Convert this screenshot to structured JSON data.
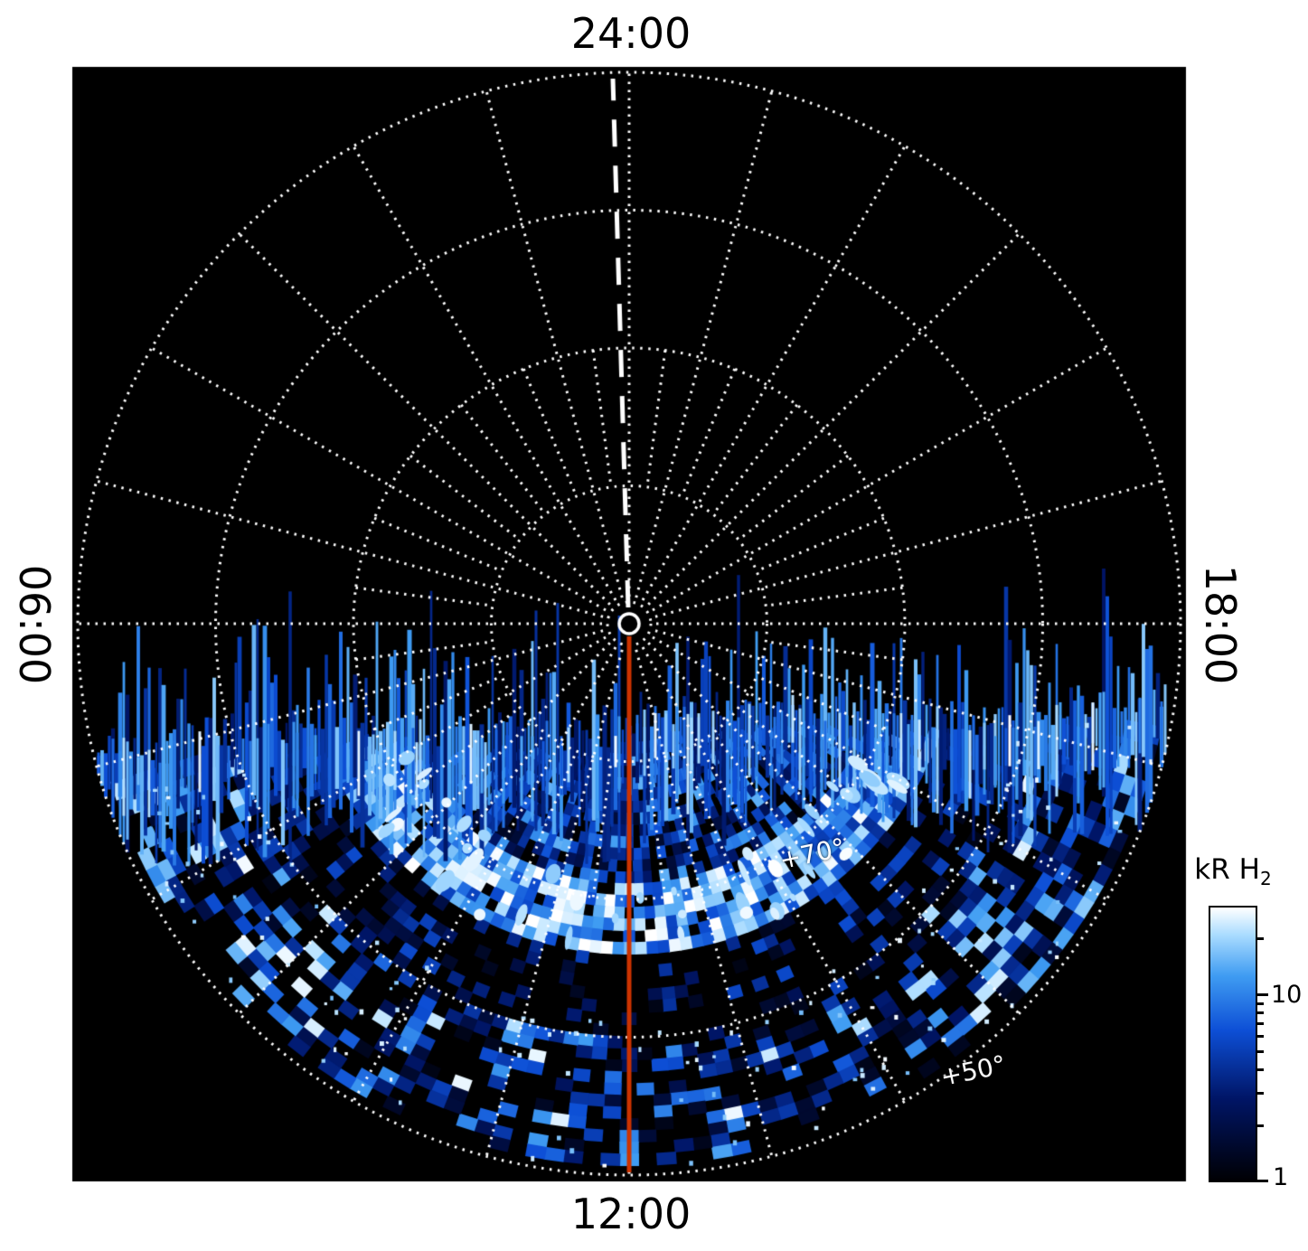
{
  "figure": {
    "background": "#ffffff",
    "plot_background": "#000000"
  },
  "chart_data": {
    "type": "heatmap",
    "projection": "polar",
    "description": "Polar projection map of H2 emission brightness (kR) versus local time (angle) and latitude (radius). Nightside (upper) hemisphere is dark; dayside (lower) hemisphere below the terminator is filled with speckled blue emission, with a bright arc near +70 latitude, a dark gap below it, and speckled emission out to the +50 ring.",
    "angular_labels": [
      {
        "text": "24:00",
        "position": "top"
      },
      {
        "text": "06:00",
        "position": "left"
      },
      {
        "text": "12:00",
        "position": "bottom"
      },
      {
        "text": "18:00",
        "position": "right"
      }
    ],
    "latitude_rings_deg": [
      80,
      70,
      60,
      50
    ],
    "outer_ring_latitude_deg": 50,
    "ring_labels": [
      {
        "text": "+70°",
        "latitude_deg": 70
      },
      {
        "text": "+50°",
        "latitude_deg": 50
      }
    ],
    "grid": {
      "style": "dotted",
      "color": "#ffffff",
      "spoke_step_deg": 15,
      "inner_fan_step_deg": 7.5
    },
    "colorbar": {
      "title_main": "kR H",
      "title_sub": "2",
      "scale": "log",
      "range": [
        1,
        30
      ],
      "major_ticks": [
        10,
        1
      ],
      "minor_ticks": [
        2,
        3,
        4,
        5,
        6,
        7,
        8,
        9,
        20
      ],
      "stops": [
        [
          0,
          "#000004"
        ],
        [
          0.3,
          "#001566"
        ],
        [
          0.55,
          "#0d4fd6"
        ],
        [
          0.75,
          "#3f9cf2"
        ],
        [
          0.9,
          "#aadcff"
        ],
        [
          1,
          "#ffffff"
        ]
      ]
    },
    "overlays": [
      {
        "name": "noon-meridian-line",
        "style": "solid",
        "color": "#cc3300",
        "local_time": "12:00"
      },
      {
        "name": "near-midnight-meridian-line",
        "style": "dashed",
        "color": "#ffffff",
        "local_time": "24:00"
      }
    ],
    "emission": {
      "seed": 1337,
      "terminator_offset_frac": 0.215,
      "terminator_tilt_frac": -0.035,
      "bands": [
        {
          "r0": 0.1,
          "r1": 0.47,
          "base": 0.45,
          "noise": 0.35,
          "black_fraction": 0.2
        },
        {
          "r0": 0.47,
          "r1": 0.6,
          "base": 0.62,
          "noise": 0.3,
          "black_fraction": 0.08,
          "white_fraction": 0.1
        },
        {
          "r0": 0.6,
          "r1": 0.74,
          "base": 0.14,
          "noise": 0.4,
          "black_fraction": 0.45
        },
        {
          "r0": 0.74,
          "r1": 1.0,
          "base": 0.3,
          "noise": 0.5,
          "black_fraction": 0.3,
          "white_fraction": 0.05
        }
      ]
    }
  },
  "labels": {
    "top": "24:00",
    "left": "06:00",
    "bottom": "12:00",
    "right": "18:00",
    "ring_70": "+70°",
    "ring_50": "+50°",
    "cbar_title_main": "kR H",
    "cbar_title_sub": "2",
    "cbar_tick_10": "10",
    "cbar_tick_1": "1"
  }
}
